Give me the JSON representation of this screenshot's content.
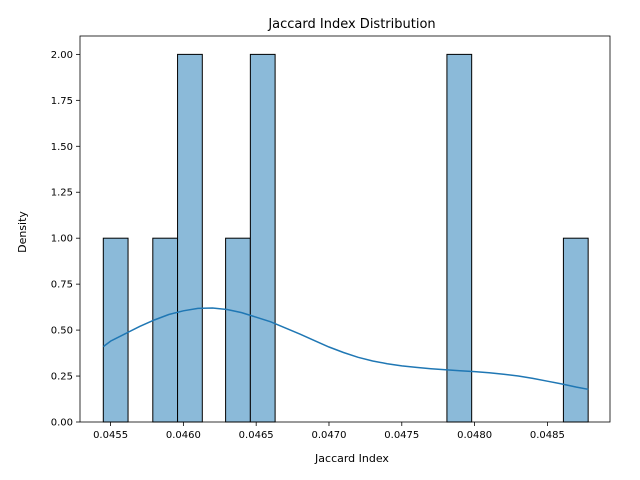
{
  "chart_data": {
    "type": "bar",
    "title": "Jaccard Index Distribution",
    "xlabel": "Jaccard Index",
    "ylabel": "Density",
    "xlim": [
      0.04529,
      0.04893
    ],
    "ylim": [
      0,
      2.1
    ],
    "xticks": [
      0.0455,
      0.046,
      0.0465,
      0.047,
      0.0475,
      0.048,
      0.0485
    ],
    "xtick_labels": [
      "0.0455",
      "0.0460",
      "0.0465",
      "0.0470",
      "0.0475",
      "0.0480",
      "0.0485"
    ],
    "yticks": [
      0,
      0.25,
      0.5,
      0.75,
      1.0,
      1.25,
      1.5,
      1.75,
      2.0
    ],
    "ytick_labels": [
      "0.00",
      "0.25",
      "0.50",
      "0.75",
      "1.00",
      "1.25",
      "1.50",
      "1.75",
      "2.00"
    ],
    "bars": [
      {
        "x0": 0.04545,
        "x1": 0.04562,
        "value": 1
      },
      {
        "x0": 0.04579,
        "x1": 0.04596,
        "value": 1
      },
      {
        "x0": 0.04596,
        "x1": 0.04613,
        "value": 2
      },
      {
        "x0": 0.04629,
        "x1": 0.04646,
        "value": 1
      },
      {
        "x0": 0.04646,
        "x1": 0.04663,
        "value": 2
      },
      {
        "x0": 0.04781,
        "x1": 0.04798,
        "value": 2
      },
      {
        "x0": 0.04861,
        "x1": 0.04878,
        "value": 1
      }
    ],
    "kde": {
      "x": [
        0.04545,
        0.0455,
        0.0455,
        0.0456,
        0.0457,
        0.0458,
        0.0459,
        0.046,
        0.0461,
        0.0462,
        0.0463,
        0.0464,
        0.0465,
        0.0466,
        0.0467,
        0.0468,
        0.0469,
        0.047,
        0.0471,
        0.0472,
        0.0473,
        0.0474,
        0.0475,
        0.0476,
        0.0477,
        0.0478,
        0.0479,
        0.048,
        0.0481,
        0.0482,
        0.0483,
        0.0484,
        0.0485,
        0.0486,
        0.0487,
        0.04878
      ],
      "y": [
        0.41,
        0.44,
        0.44,
        0.48,
        0.52,
        0.555,
        0.585,
        0.605,
        0.618,
        0.62,
        0.612,
        0.595,
        0.57,
        0.545,
        0.512,
        0.478,
        0.443,
        0.408,
        0.378,
        0.352,
        0.332,
        0.317,
        0.305,
        0.297,
        0.29,
        0.284,
        0.279,
        0.274,
        0.268,
        0.26,
        0.25,
        0.237,
        0.222,
        0.207,
        0.19,
        0.178
      ]
    },
    "grid": false,
    "colors": {
      "bar_fill": "#8bbad9",
      "bar_edge": "#000000",
      "kde_line": "#1f77b4"
    }
  }
}
